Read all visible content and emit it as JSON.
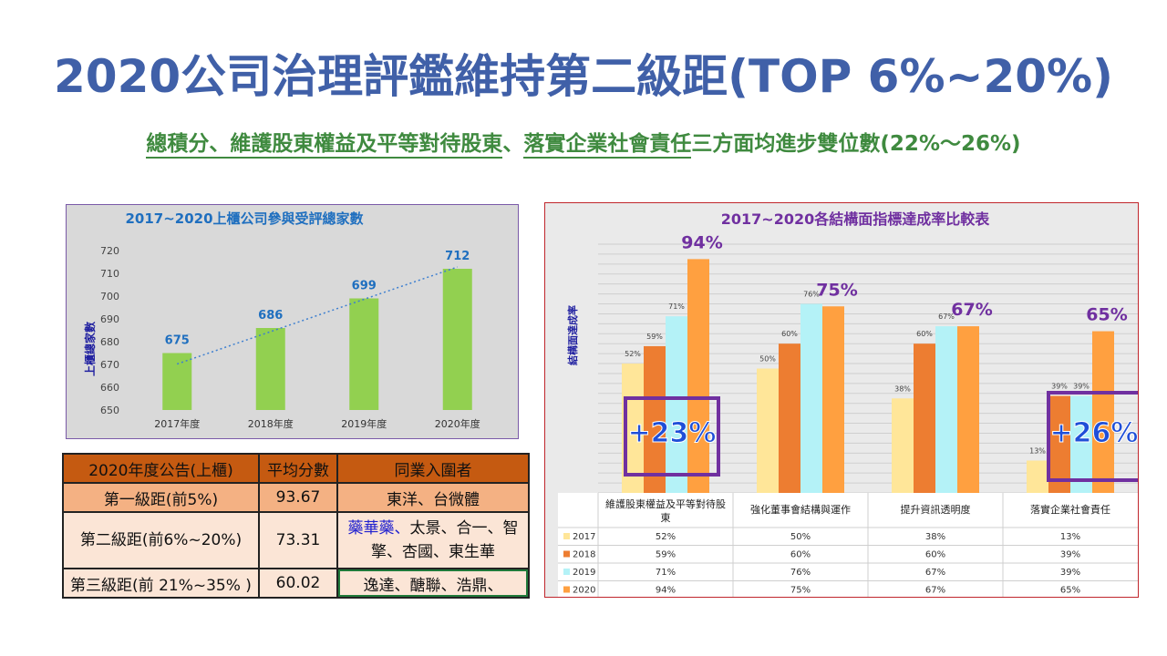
{
  "title": "2020公司治理評鑑維持第二級距(TOP 6%~20%)",
  "subtitle": {
    "part1": "總積分、維護股東權益及平等對待股東",
    "sep": "、",
    "part2": "落實企業社會責任",
    "part3": "三方面均進步雙位數(22%～26%)"
  },
  "left_chart": {
    "chart_data": {
      "type": "bar",
      "title": "2017~2020上櫃公司參與受評總家數",
      "ylabel": "上櫃總家數",
      "categories": [
        "2017年度",
        "2018年度",
        "2019年度",
        "2020年度"
      ],
      "values": [
        675,
        686,
        699,
        712
      ],
      "value_labels": [
        "675",
        "686",
        "699",
        "712"
      ],
      "ylim": [
        650,
        720
      ],
      "yticks": [
        "650",
        "660",
        "670",
        "680",
        "690",
        "700",
        "710",
        "720"
      ],
      "trendline": "linear dotted",
      "bar_color": "#92d050",
      "label_color": "#1f6fbf"
    }
  },
  "right_chart": {
    "chart_data": {
      "type": "bar",
      "title": "2017~2020各結構面指標達成率比較表",
      "ylabel": "結構面達成率",
      "categories": [
        "維護股東權益及平等對待股東",
        "強化董事會結構與運作",
        "提升資訊透明度",
        "落實企業社會責任"
      ],
      "series": [
        {
          "name": "2017",
          "values": [
            52,
            50,
            38,
            13
          ],
          "labels": [
            "52%",
            "50%",
            "38%",
            "13%"
          ],
          "color": "#ffe699"
        },
        {
          "name": "2018",
          "values": [
            59,
            60,
            60,
            39
          ],
          "labels": [
            "59%",
            "60%",
            "60%",
            "39%"
          ],
          "color": "#ed7d31"
        },
        {
          "name": "2019",
          "values": [
            71,
            76,
            67,
            39
          ],
          "labels": [
            "71%",
            "76%",
            "67%",
            "39%"
          ],
          "color": "#b4f2f7"
        },
        {
          "name": "2020",
          "values": [
            94,
            75,
            67,
            65
          ],
          "labels": [
            "94%",
            "75%",
            "67%",
            "65%"
          ],
          "color": "#ffa040"
        }
      ],
      "ylim": [
        0,
        100
      ],
      "data_table": true,
      "annotations": [
        "+23%",
        "+26%"
      ]
    }
  },
  "table": {
    "headers": [
      "2020年度公告(上櫃)",
      "平均分數",
      "同業入圍者"
    ],
    "rows": [
      {
        "tier": "第一級距(前5%)",
        "score": "93.67",
        "peers_hi": "",
        "peers": "東洋、台微體"
      },
      {
        "tier": "第二級距(前6%~20%)",
        "score": "73.31",
        "peers_hi": "藥華藥",
        "peers_sep": "、",
        "peers": "太景、合一、智擎、杏國、東生華"
      },
      {
        "tier": "第三級距(前 21%~35% )",
        "score": "60.02",
        "peers_hi": "",
        "peers": "逸達、醣聯、浩鼎、"
      }
    ]
  }
}
